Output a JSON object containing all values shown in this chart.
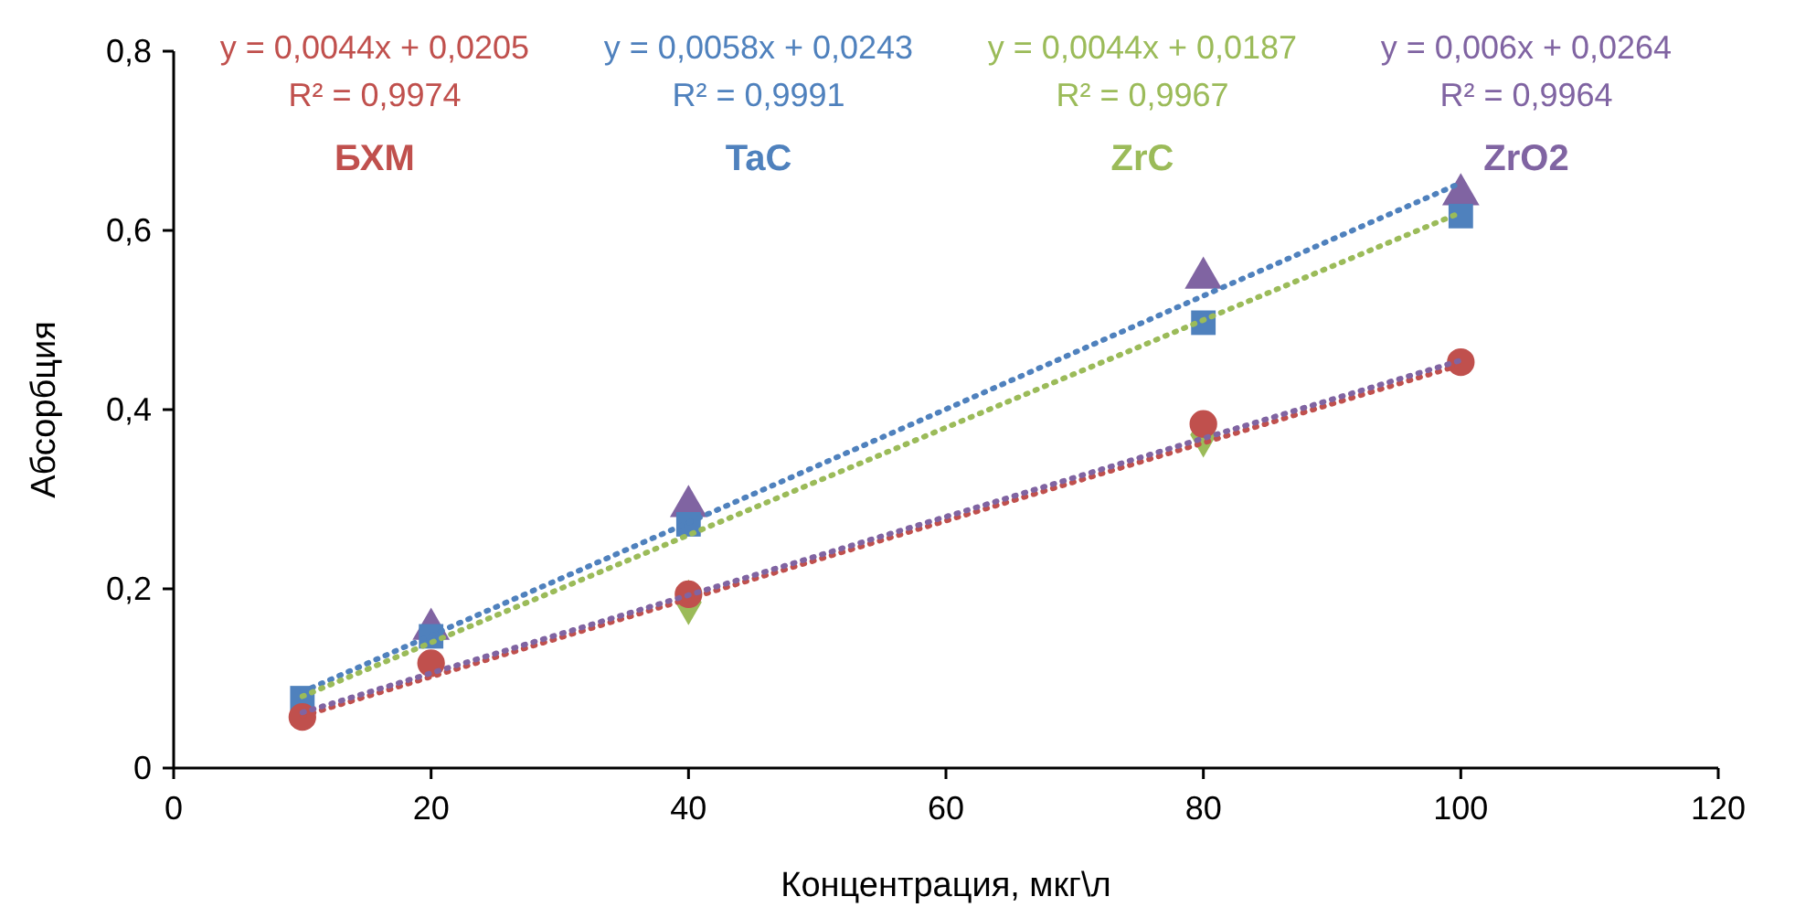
{
  "chart_data": {
    "type": "scatter",
    "xlabel": "Концентрация, мкг\\л",
    "ylabel": "Абсорбция",
    "xlim": [
      0,
      120
    ],
    "xticks": [
      0,
      20,
      40,
      60,
      80,
      100,
      120
    ],
    "ylim": [
      0,
      0.8
    ],
    "yticks": [
      0,
      {
        "value": 0.2,
        "label": "0,2"
      },
      {
        "value": 0.4,
        "label": "0,4"
      },
      {
        "value": 0.6,
        "label": "0,6"
      },
      {
        "value": 0.8,
        "label": "0,8"
      }
    ],
    "grid": false,
    "legend": false,
    "x": [
      10,
      20,
      40,
      80,
      100
    ],
    "series": [
      {
        "type": "line",
        "values": [
          0.085,
          0.148,
          0.274,
          0.527,
          0.653
        ],
        "color": "#4f81bd",
        "line_style": "dotted",
        "marker": "none"
      },
      {
        "type": "line",
        "values": [
          0.08,
          0.14,
          0.26,
          0.5,
          0.62
        ],
        "color": "#9bbb59",
        "line_style": "dotted",
        "marker": "none"
      },
      {
        "type": "line",
        "values": [
          0.058,
          0.102,
          0.189,
          0.363,
          0.45
        ],
        "color": "#c0504d",
        "line_style": "dotted",
        "marker": "none"
      },
      {
        "type": "line",
        "values": [
          0.062,
          0.106,
          0.193,
          0.368,
          0.455
        ],
        "color": "#8064a2",
        "line_style": "dotted",
        "marker": "none"
      },
      {
        "name": "ZrO2",
        "color": "#8064a2",
        "marker": "triangle",
        "values": [
          null,
          0.155,
          0.292,
          0.547,
          0.64
        ]
      },
      {
        "name": "ZrC",
        "color": "#9bbb59",
        "marker": "diamond",
        "values": [
          null,
          null,
          0.185,
          0.372,
          null
        ]
      },
      {
        "name": "TaC",
        "color": "#4f81bd",
        "marker": "square",
        "values": [
          0.078,
          0.147,
          0.272,
          0.497,
          0.616
        ]
      },
      {
        "name": "БХМ",
        "color": "#c0504d",
        "marker": "circle",
        "values": [
          0.057,
          0.117,
          0.194,
          0.384,
          0.453
        ]
      }
    ],
    "annotations": [
      "y = 0,0044x + 0,0205",
      "R² = 0,9974",
      "y = 0,0058x + 0,0243",
      "R² = 0,9991",
      "y = 0,0044x + 0,0187",
      "R² = 0,9967",
      "y = 0,006x + 0,0264",
      "R² = 0,9964"
    ]
  }
}
